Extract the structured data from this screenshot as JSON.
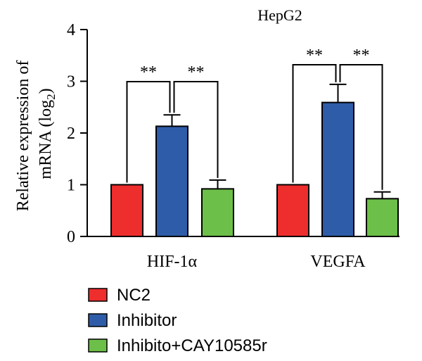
{
  "chart_data": {
    "type": "bar",
    "title": "HepG2",
    "ylabel_line1": "Relative expression of",
    "ylabel_line2_prefix": "mRNA (log",
    "ylabel_line2_sub": "2",
    "ylabel_line2_suffix": ")",
    "xlabel": "",
    "ylim": [
      0,
      4
    ],
    "yticks": [
      0,
      1,
      2,
      3,
      4
    ],
    "grid": false,
    "legend_position": "bottom-left",
    "categories": [
      "HIF-1α",
      "VEGFA"
    ],
    "series": [
      {
        "name": "NC2",
        "color": "#ee2d2d",
        "values": [
          1.0,
          1.0
        ],
        "errors": [
          0,
          0
        ]
      },
      {
        "name": "Inhibitor",
        "color": "#2e5ca8",
        "values": [
          2.13,
          2.59
        ],
        "errors": [
          0.22,
          0.35
        ]
      },
      {
        "name": "Inhibito+CAY10585r",
        "color": "#6cbf48",
        "values": [
          0.92,
          0.73
        ],
        "errors": [
          0.17,
          0.13
        ]
      }
    ],
    "significance": [
      {
        "category": 0,
        "from": 0,
        "to": 1,
        "label": "**"
      },
      {
        "category": 0,
        "from": 1,
        "to": 2,
        "label": "**"
      },
      {
        "category": 1,
        "from": 0,
        "to": 1,
        "label": "**"
      },
      {
        "category": 1,
        "from": 1,
        "to": 2,
        "label": "**"
      }
    ]
  }
}
